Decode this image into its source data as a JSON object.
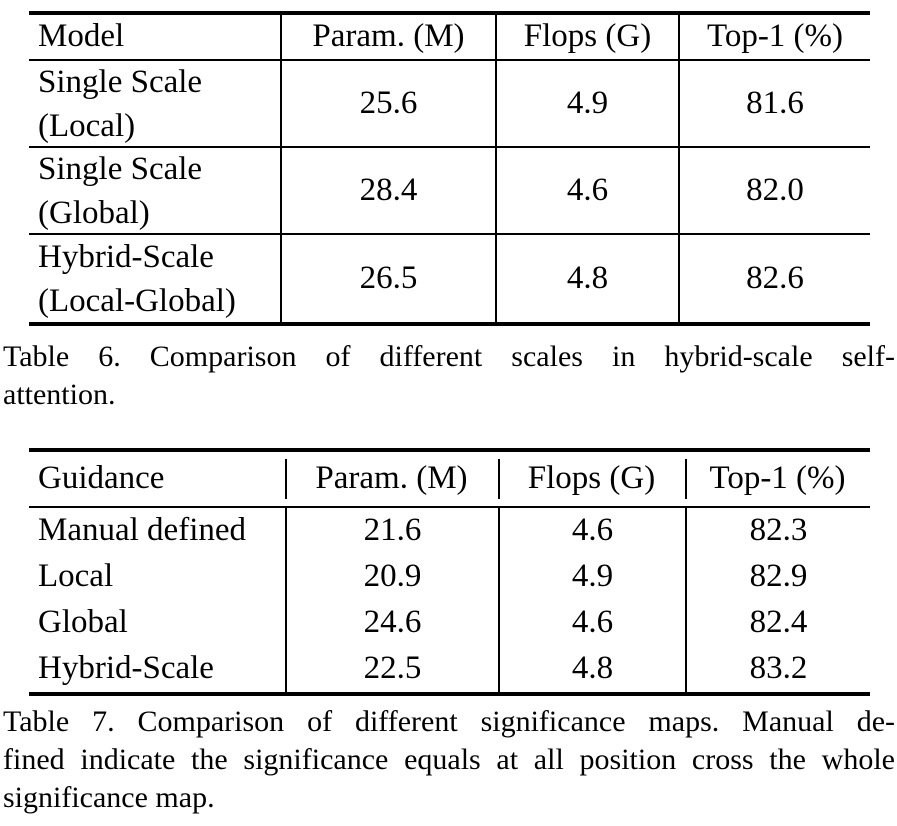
{
  "colors": {
    "text": "#000000",
    "background": "#ffffff",
    "rule": "#000000"
  },
  "table6": {
    "columns": [
      "Model",
      "Param. (M)",
      "Flops (G)",
      "Top-1 (%)"
    ],
    "rows": [
      {
        "model_line1": "Single Scale",
        "model_line2": "(Local)",
        "param": "25.6",
        "flops": "4.9",
        "top1": "81.6"
      },
      {
        "model_line1": "Single Scale",
        "model_line2": "(Global)",
        "param": "28.4",
        "flops": "4.6",
        "top1": "82.0"
      },
      {
        "model_line1": "Hybrid-Scale",
        "model_line2": "(Local-Global)",
        "param": "26.5",
        "flops": "4.8",
        "top1": "82.6"
      }
    ],
    "caption_lines": [
      "Table 6. Comparison of different scales in hybrid-scale self-",
      "attention."
    ]
  },
  "table7": {
    "columns": [
      "Guidance",
      "Param. (M)",
      "Flops (G)",
      "Top-1 (%)"
    ],
    "rows": [
      {
        "guidance": "Manual defined",
        "param": "21.6",
        "flops": "4.6",
        "top1": "82.3"
      },
      {
        "guidance": "Local",
        "param": "20.9",
        "flops": "4.9",
        "top1": "82.9"
      },
      {
        "guidance": "Global",
        "param": "24.6",
        "flops": "4.6",
        "top1": "82.4"
      },
      {
        "guidance": "Hybrid-Scale",
        "param": "22.5",
        "flops": "4.8",
        "top1": "83.2"
      }
    ],
    "caption_lines": [
      "Table 7. Comparison of different significance maps.  Manual de-",
      "fined indicate the significance equals at all position cross the whole",
      "significance map."
    ]
  }
}
